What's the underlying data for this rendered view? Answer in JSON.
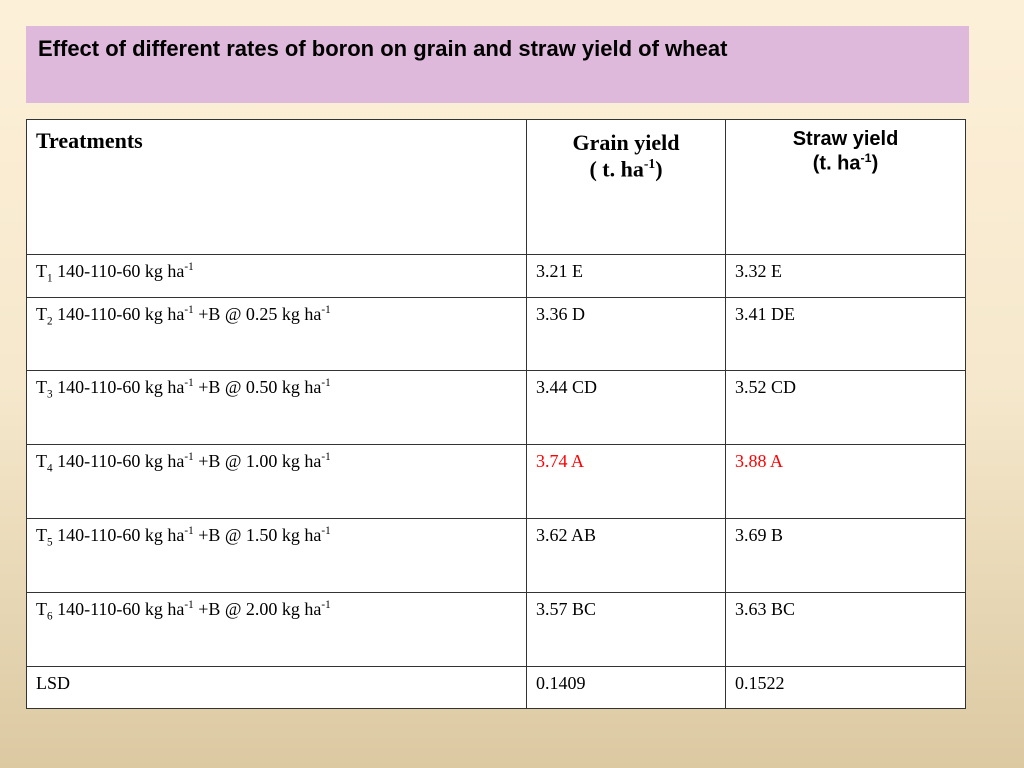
{
  "title": "Effect of different rates of boron on grain and straw yield of wheat",
  "highlight_color": "#ff0000",
  "table": {
    "columns": [
      [
        [
          {
            "text": "Treatments"
          }
        ]
      ],
      [
        [
          {
            "text": "Grain yield"
          }
        ],
        [
          {
            "text": "( t. ha"
          },
          {
            "sup": "-1"
          },
          {
            "text": ")"
          }
        ]
      ],
      [
        [
          {
            "text": "Straw yield"
          }
        ],
        [
          {
            "text": "(t. ha"
          },
          {
            "sup": "-1"
          },
          {
            "text": ")"
          }
        ]
      ]
    ],
    "rows": [
      {
        "cells": [
          [
            {
              "text": "T"
            },
            {
              "sub": "1"
            },
            {
              "text": " 140-110-60 kg ha"
            },
            {
              "sup": "-1"
            }
          ],
          [
            {
              "text": "3.21 E"
            }
          ],
          [
            {
              "text": "3.32 E"
            }
          ]
        ],
        "highlight": false
      },
      {
        "cells": [
          [
            {
              "text": "T"
            },
            {
              "sub": "2"
            },
            {
              "text": " 140-110-60 kg ha"
            },
            {
              "sup": "-1"
            },
            {
              "text": " +B @ 0.25 kg ha"
            },
            {
              "sup": "-1"
            }
          ],
          [
            {
              "text": "3.36 D"
            }
          ],
          [
            {
              "text": "3.41 DE"
            }
          ]
        ],
        "highlight": false
      },
      {
        "cells": [
          [
            {
              "text": "T"
            },
            {
              "sub": "3"
            },
            {
              "text": " 140-110-60 kg ha"
            },
            {
              "sup": "-1"
            },
            {
              "text": " +B @ 0.50 kg ha"
            },
            {
              "sup": "-1"
            }
          ],
          [
            {
              "text": "3.44 CD"
            }
          ],
          [
            {
              "text": "3.52 CD"
            }
          ]
        ],
        "highlight": false
      },
      {
        "cells": [
          [
            {
              "text": "T"
            },
            {
              "sub": "4"
            },
            {
              "text": " 140-110-60 kg ha"
            },
            {
              "sup": "-1"
            },
            {
              "text": " +B @ 1.00 kg ha"
            },
            {
              "sup": "-1"
            }
          ],
          [
            {
              "text": "3.74 A"
            }
          ],
          [
            {
              "text": "3.88 A"
            }
          ]
        ],
        "highlight": true
      },
      {
        "cells": [
          [
            {
              "text": "T"
            },
            {
              "sub": "5"
            },
            {
              "text": " 140-110-60 kg ha"
            },
            {
              "sup": "-1"
            },
            {
              "text": " +B @ 1.50 kg ha"
            },
            {
              "sup": "-1"
            }
          ],
          [
            {
              "text": "3.62 AB"
            }
          ],
          [
            {
              "text": "3.69 B"
            }
          ]
        ],
        "highlight": false
      },
      {
        "cells": [
          [
            {
              "text": "T"
            },
            {
              "sub": "6"
            },
            {
              "text": " 140-110-60 kg ha"
            },
            {
              "sup": "-1"
            },
            {
              "text": " +B @ 2.00 kg ha"
            },
            {
              "sup": "-1"
            }
          ],
          [
            {
              "text": "3.57 BC"
            }
          ],
          [
            {
              "text": "3.63 BC"
            }
          ]
        ],
        "highlight": false
      },
      {
        "cells": [
          [
            {
              "text": "LSD"
            }
          ],
          [
            {
              "text": "0.1409"
            }
          ],
          [
            {
              "text": "0.1522"
            }
          ]
        ],
        "highlight": false
      }
    ]
  }
}
